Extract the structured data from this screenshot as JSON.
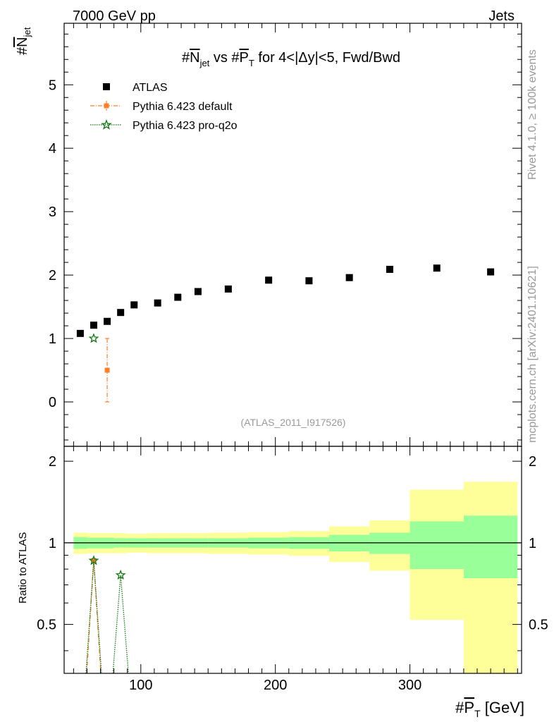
{
  "header": {
    "left": "7000 GeV pp",
    "right": "Jets"
  },
  "side_labels": {
    "rivet": "Rivet 4.1.0, ≥ 100k events",
    "mcplots": "mcplots.cern.ch [arXiv:2401.10621]"
  },
  "chart_data": [
    {
      "type": "scatter",
      "panel": "main",
      "title": "#N_jet vs #P_T for 4<|Δy|<5, Fwd/Bwd",
      "title_parts": {
        "hash1": "#",
        "n": "N",
        "jet": "jet",
        "vs": " vs #",
        "p": "P",
        "T": "T",
        "rest": " for 4<|Δy|<5, Fwd/Bwd"
      },
      "ylabel": {
        "hash": "#",
        "n": "N",
        "jet": "jet"
      },
      "watermark": "(ATLAS_2011_I917526)",
      "xlim": [
        43,
        383
      ],
      "ylim": [
        -0.7,
        5.97
      ],
      "y_ticks": [
        0,
        1,
        2,
        3,
        4,
        5
      ],
      "y_tick_labels": [
        "0",
        "1",
        "2",
        "3",
        "4",
        "5"
      ],
      "legend": {
        "position": "top-left",
        "entries": [
          "ATLAS",
          "Pythia 6.423 default",
          "Pythia 6.423 pro-q2o"
        ]
      },
      "series": [
        {
          "name": "ATLAS",
          "marker": "square",
          "color": "#000000",
          "x": [
            55,
            65,
            75,
            85,
            95,
            112.5,
            127.5,
            142.5,
            165,
            195,
            225,
            255,
            285,
            320,
            360
          ],
          "y": [
            1.08,
            1.21,
            1.27,
            1.41,
            1.53,
            1.56,
            1.65,
            1.74,
            1.78,
            1.92,
            1.91,
            1.96,
            2.09,
            2.11,
            2.05
          ]
        },
        {
          "name": "Pythia 6.423 default",
          "marker": "square",
          "color": "#ff7f2a",
          "x": [
            75
          ],
          "y": [
            0.5
          ],
          "yerr": [
            0.5
          ]
        },
        {
          "name": "Pythia 6.423 pro-q2o",
          "marker": "star",
          "color": "#117711",
          "x": [
            65
          ],
          "y": [
            1.0
          ]
        }
      ]
    },
    {
      "type": "area",
      "panel": "ratio",
      "ylabel": "Ratio to ATLAS",
      "xlabel_parts": {
        "hash": "#",
        "p": "P",
        "T": "T",
        "unit": " [GeV]"
      },
      "xlim": [
        43,
        383
      ],
      "ylim": [
        0.33,
        2.27
      ],
      "x_ticks": [
        100,
        200,
        300
      ],
      "x_tick_labels": [
        "100",
        "200",
        "300"
      ],
      "y_ticks": [
        0.5,
        1,
        2
      ],
      "y_tick_labels": [
        "0.5",
        "1",
        "2"
      ],
      "bins": [
        {
          "lo": 50,
          "hi": 60,
          "stat_lo": 0.95,
          "stat_hi": 1.05,
          "tot_lo": 0.91,
          "tot_hi": 1.09
        },
        {
          "lo": 60,
          "hi": 70,
          "stat_lo": 0.955,
          "stat_hi": 1.045,
          "tot_lo": 0.915,
          "tot_hi": 1.085
        },
        {
          "lo": 70,
          "hi": 80,
          "stat_lo": 0.955,
          "stat_hi": 1.045,
          "tot_lo": 0.915,
          "tot_hi": 1.085
        },
        {
          "lo": 80,
          "hi": 90,
          "stat_lo": 0.96,
          "stat_hi": 1.04,
          "tot_lo": 0.915,
          "tot_hi": 1.085
        },
        {
          "lo": 90,
          "hi": 105,
          "stat_lo": 0.96,
          "stat_hi": 1.04,
          "tot_lo": 0.92,
          "tot_hi": 1.08
        },
        {
          "lo": 105,
          "hi": 120,
          "stat_lo": 0.96,
          "stat_hi": 1.04,
          "tot_lo": 0.915,
          "tot_hi": 1.085
        },
        {
          "lo": 120,
          "hi": 135,
          "stat_lo": 0.96,
          "stat_hi": 1.04,
          "tot_lo": 0.915,
          "tot_hi": 1.085
        },
        {
          "lo": 135,
          "hi": 150,
          "stat_lo": 0.96,
          "stat_hi": 1.04,
          "tot_lo": 0.915,
          "tot_hi": 1.085
        },
        {
          "lo": 150,
          "hi": 180,
          "stat_lo": 0.96,
          "stat_hi": 1.04,
          "tot_lo": 0.91,
          "tot_hi": 1.09
        },
        {
          "lo": 180,
          "hi": 210,
          "stat_lo": 0.955,
          "stat_hi": 1.045,
          "tot_lo": 0.905,
          "tot_hi": 1.095
        },
        {
          "lo": 210,
          "hi": 240,
          "stat_lo": 0.95,
          "stat_hi": 1.05,
          "tot_lo": 0.895,
          "tot_hi": 1.105
        },
        {
          "lo": 240,
          "hi": 270,
          "stat_lo": 0.93,
          "stat_hi": 1.07,
          "tot_lo": 0.85,
          "tot_hi": 1.15
        },
        {
          "lo": 270,
          "hi": 300,
          "stat_lo": 0.91,
          "stat_hi": 1.09,
          "tot_lo": 0.79,
          "tot_hi": 1.21
        },
        {
          "lo": 300,
          "hi": 340,
          "stat_lo": 0.8,
          "stat_hi": 1.2,
          "tot_lo": 0.52,
          "tot_hi": 1.57
        },
        {
          "lo": 340,
          "hi": 380,
          "stat_lo": 0.74,
          "stat_hi": 1.26,
          "tot_lo": 0.33,
          "tot_hi": 1.68
        }
      ],
      "series": [
        {
          "name": "Pythia 6.423 default",
          "marker": "square",
          "color": "#ff7f2a",
          "x": [
            65
          ],
          "y": [
            0.86
          ]
        },
        {
          "name": "Pythia 6.423 pro-q2o",
          "marker": "star",
          "color": "#117711",
          "x": [
            65,
            85
          ],
          "y": [
            0.86,
            0.76
          ]
        }
      ]
    }
  ]
}
